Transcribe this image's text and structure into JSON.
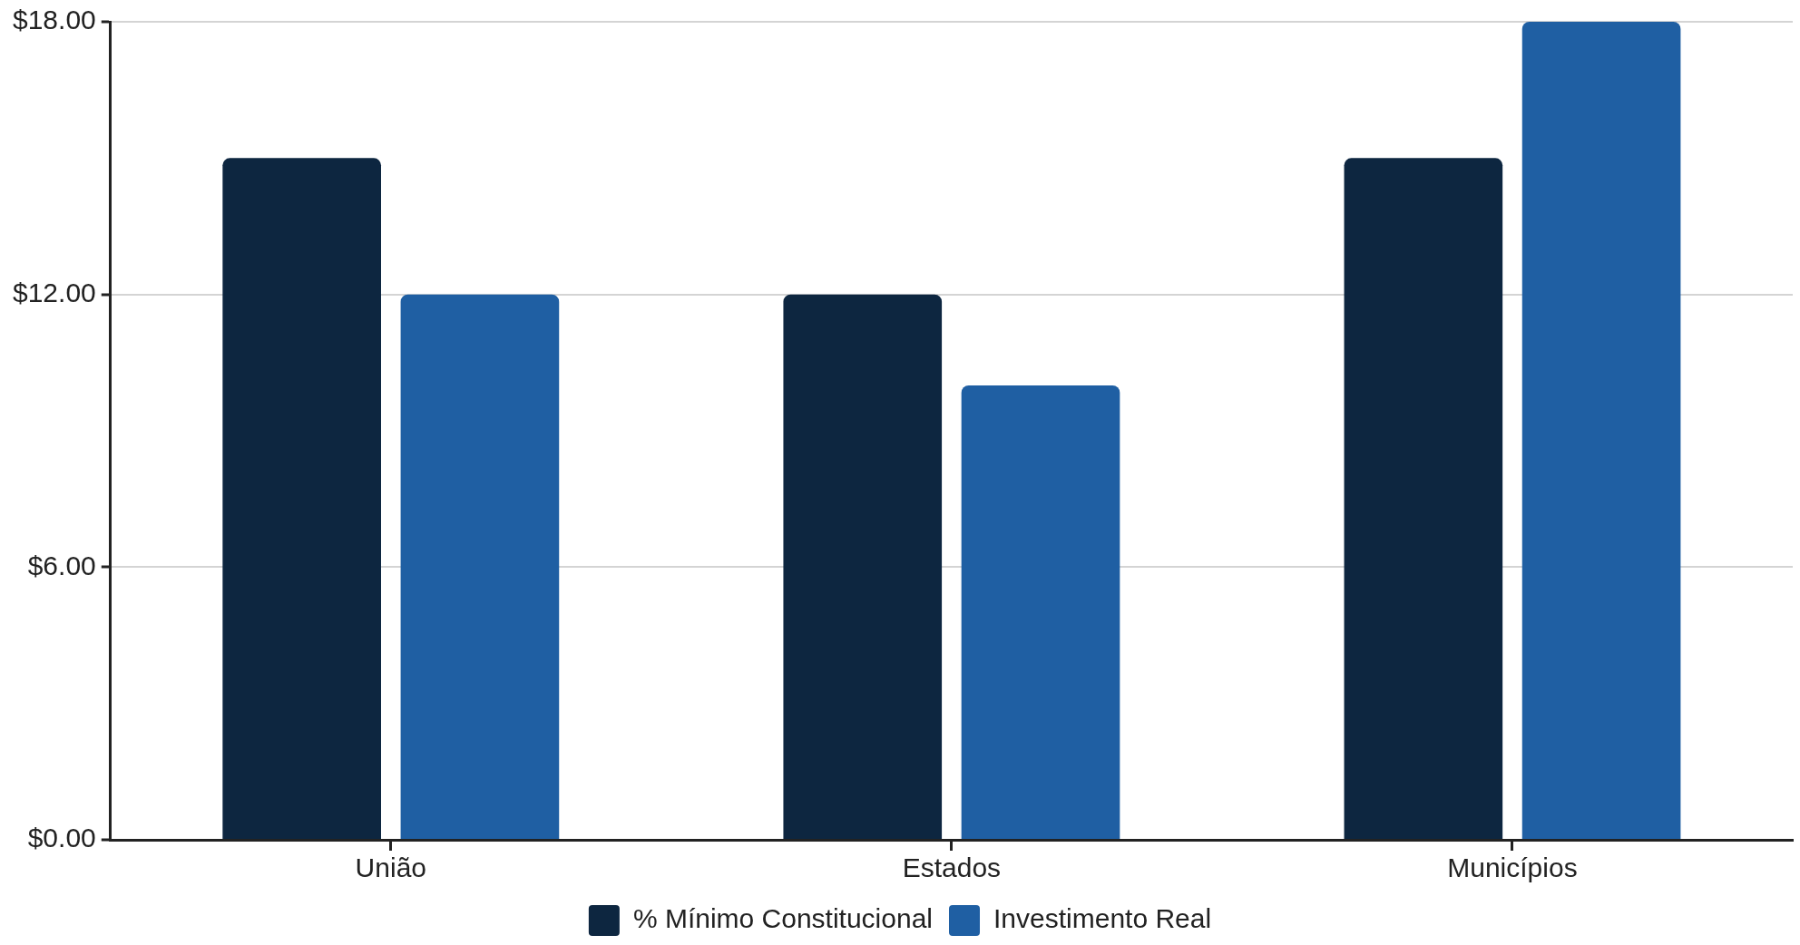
{
  "chart_data": {
    "type": "bar",
    "categories": [
      "União",
      "Estados",
      "Municípios"
    ],
    "series": [
      {
        "name": "% Mínimo Constitucional",
        "color": "#0d2640",
        "values": [
          15,
          12,
          15
        ]
      },
      {
        "name": "Investimento Real",
        "color": "#1f5fa3",
        "values": [
          12,
          10,
          18
        ]
      }
    ],
    "ylim": [
      0,
      18
    ],
    "yticks": [
      {
        "value": 0,
        "label": "$0.00"
      },
      {
        "value": 6,
        "label": "$6.00"
      },
      {
        "value": 12,
        "label": "$12.00"
      },
      {
        "value": 18,
        "label": "$18.00"
      }
    ],
    "grid": "y",
    "legend": "bottom"
  }
}
